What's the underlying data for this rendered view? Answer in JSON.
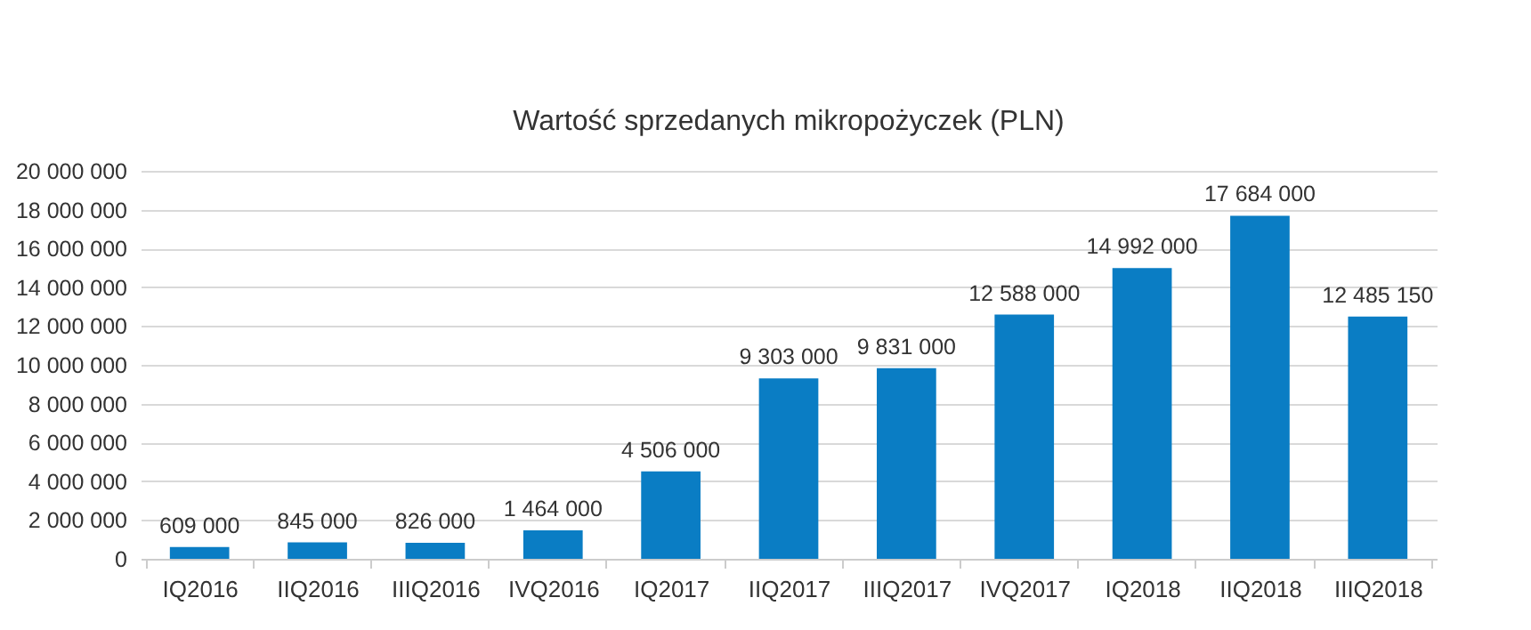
{
  "chart_data": {
    "type": "bar",
    "title": "Wartość sprzedanych mikropożyczek (PLN)",
    "categories": [
      "IQ2016",
      "IIQ2016",
      "IIIQ2016",
      "IVQ2016",
      "IQ2017",
      "IIQ2017",
      "IIIQ2017",
      "IVQ2017",
      "IQ2018",
      "IIQ2018",
      "IIIQ2018"
    ],
    "values": [
      609000,
      845000,
      826000,
      1464000,
      4506000,
      9303000,
      9831000,
      12588000,
      14992000,
      17684000,
      12485150
    ],
    "value_labels": [
      "609 000",
      "845 000",
      "826 000",
      "1 464 000",
      "4 506 000",
      "9 303 000",
      "9 831 000",
      "12 588 000",
      "14 992 000",
      "17 684 000",
      "12 485 150"
    ],
    "color": "#0a7dc4",
    "ylim": [
      0,
      20000000
    ],
    "yticks": [
      {
        "value": 0,
        "label": "0"
      },
      {
        "value": 2000000,
        "label": "2 000 000"
      },
      {
        "value": 4000000,
        "label": "4 000 000"
      },
      {
        "value": 6000000,
        "label": "6 000 000"
      },
      {
        "value": 8000000,
        "label": "8 000 000"
      },
      {
        "value": 10000000,
        "label": "10 000 000"
      },
      {
        "value": 12000000,
        "label": "12 000 000"
      },
      {
        "value": 14000000,
        "label": "14 000 000"
      },
      {
        "value": 16000000,
        "label": "16 000 000"
      },
      {
        "value": 18000000,
        "label": "18 000 000"
      },
      {
        "value": 20000000,
        "label": "20 000 000"
      }
    ],
    "grid": "y"
  }
}
